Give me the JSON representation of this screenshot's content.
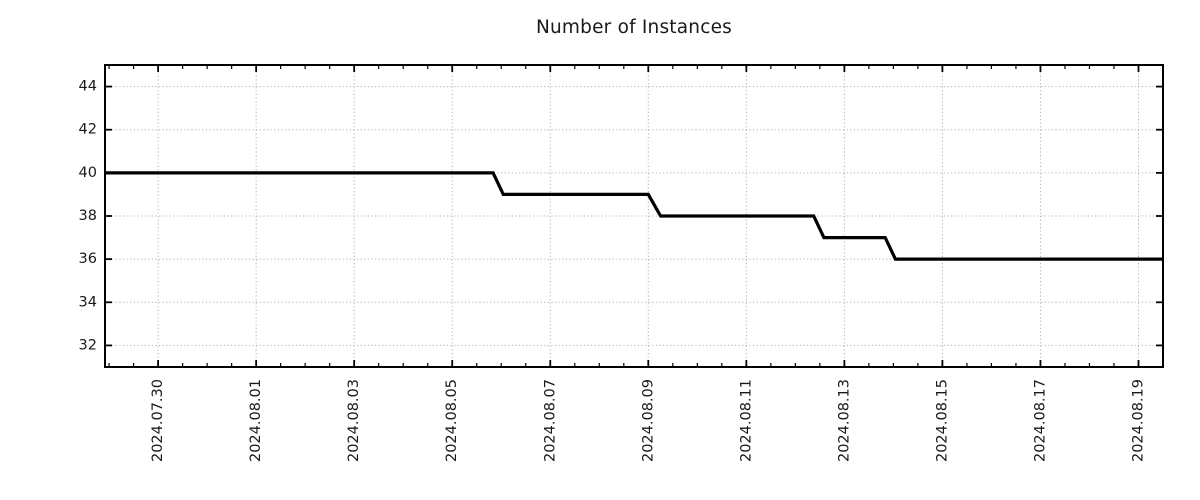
{
  "chart_data": {
    "type": "line",
    "title": "Number of Instances",
    "line_color": "#000000",
    "line_width": 3.2,
    "background": "#ffffff",
    "grid": {
      "show": true,
      "style": "dotted",
      "color": "#b0b0b0"
    },
    "legend": {
      "show": false
    },
    "x_axis": {
      "min": "2024-07-28T22:00:00",
      "max": "2024-08-19T12:00:00",
      "minor_tick_interval_hours": 12,
      "major_ticks": [
        {
          "date": "2024-07-30T00:00:00",
          "label": "2024.07.30"
        },
        {
          "date": "2024-08-01T00:00:00",
          "label": "2024.08.01"
        },
        {
          "date": "2024-08-03T00:00:00",
          "label": "2024.08.03"
        },
        {
          "date": "2024-08-05T00:00:00",
          "label": "2024.08.05"
        },
        {
          "date": "2024-08-07T00:00:00",
          "label": "2024.08.07"
        },
        {
          "date": "2024-08-09T00:00:00",
          "label": "2024.08.09"
        },
        {
          "date": "2024-08-11T00:00:00",
          "label": "2024.08.11"
        },
        {
          "date": "2024-08-13T00:00:00",
          "label": "2024.08.13"
        },
        {
          "date": "2024-08-15T00:00:00",
          "label": "2024.08.15"
        },
        {
          "date": "2024-08-17T00:00:00",
          "label": "2024.08.17"
        },
        {
          "date": "2024-08-19T00:00:00",
          "label": "2024.08.19"
        }
      ]
    },
    "y_axis": {
      "min": 31.0,
      "max": 45.0,
      "ticks": [
        32,
        34,
        36,
        38,
        40,
        42,
        44
      ]
    },
    "series": [
      {
        "name": "Number of Instances",
        "points": [
          {
            "date": "2024-07-28T22:00:00",
            "value": 40
          },
          {
            "date": "2024-08-05T20:00:00",
            "value": 40
          },
          {
            "date": "2024-08-06T01:00:00",
            "value": 39
          },
          {
            "date": "2024-08-09T00:00:00",
            "value": 39
          },
          {
            "date": "2024-08-09T06:00:00",
            "value": 38
          },
          {
            "date": "2024-08-12T09:00:00",
            "value": 38
          },
          {
            "date": "2024-08-12T14:00:00",
            "value": 37
          },
          {
            "date": "2024-08-13T20:00:00",
            "value": 37
          },
          {
            "date": "2024-08-14T01:00:00",
            "value": 36
          },
          {
            "date": "2024-08-19T12:00:00",
            "value": 36
          }
        ]
      }
    ]
  }
}
